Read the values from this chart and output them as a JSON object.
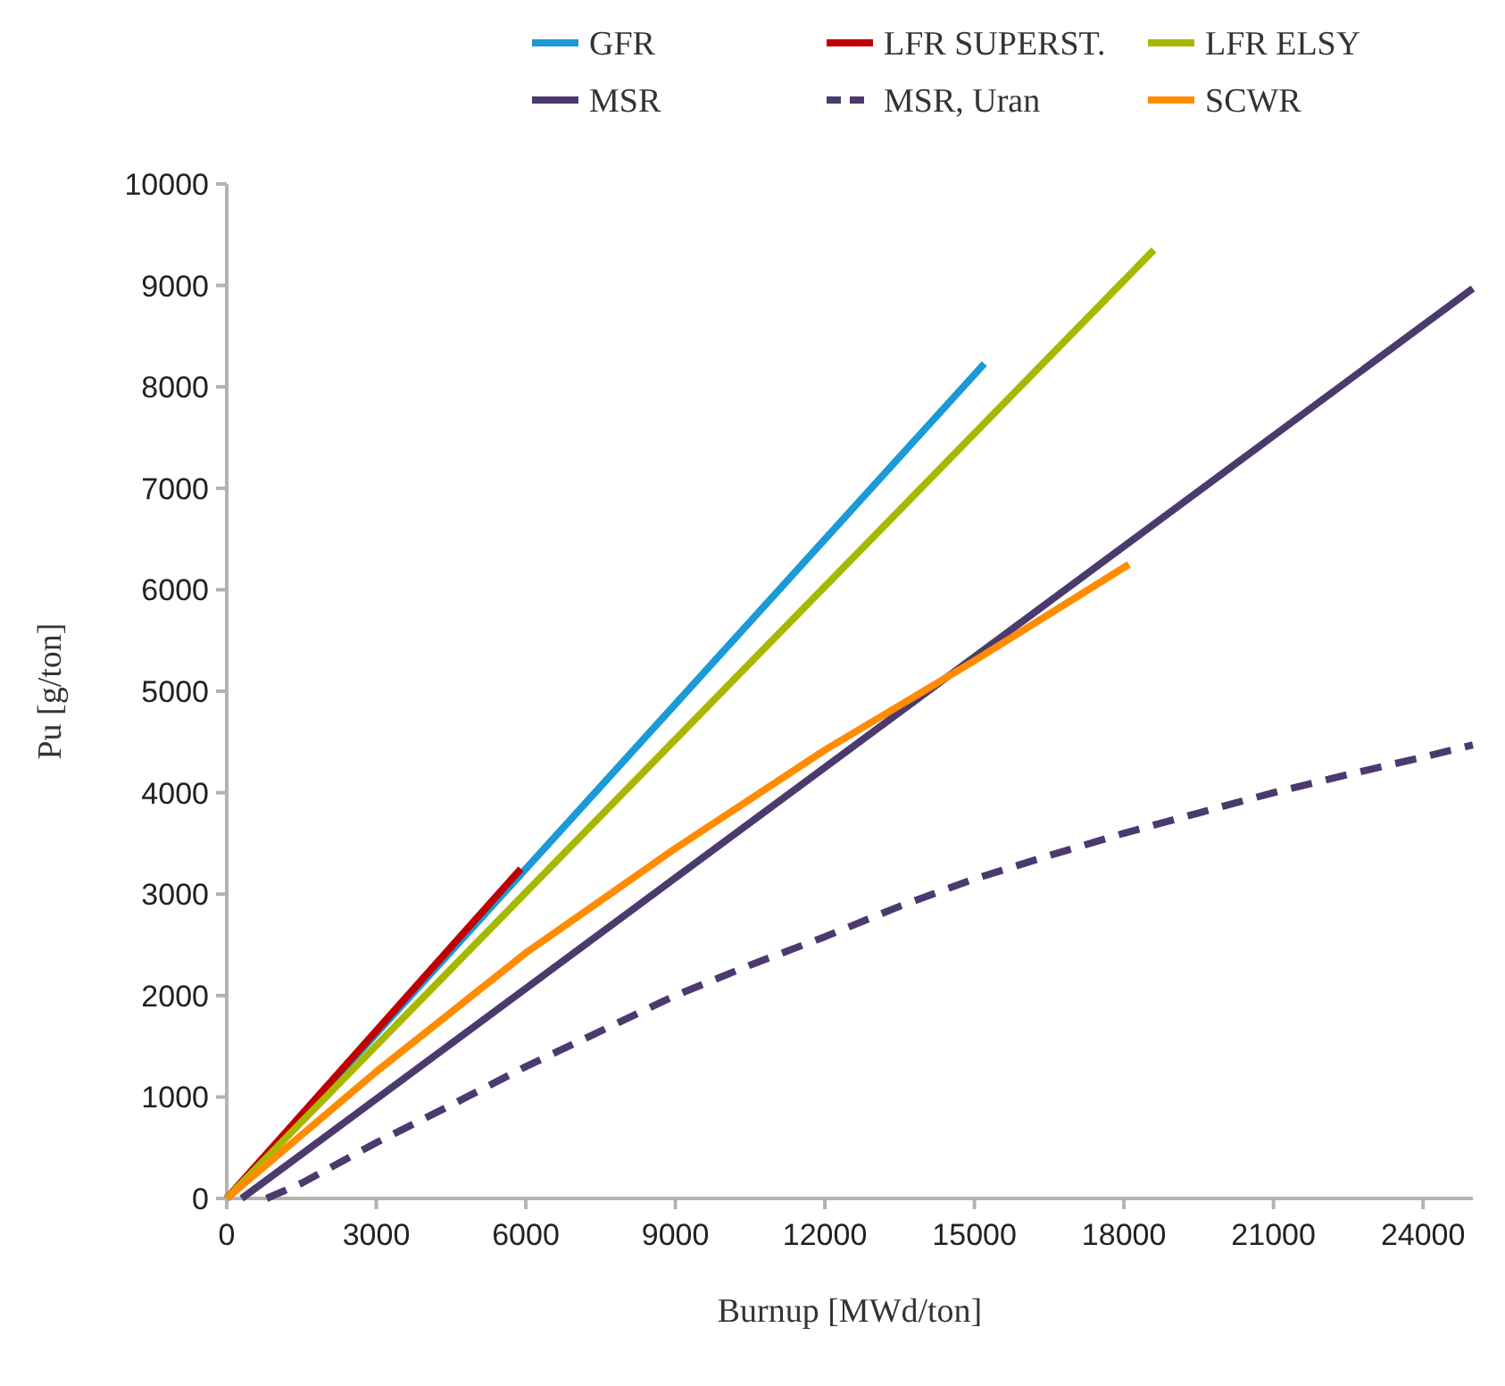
{
  "chart_data": {
    "type": "line",
    "xlabel": "Burnup [MWd/ton]",
    "ylabel": "Pu [g/ton]",
    "xlim": [
      0,
      25000
    ],
    "xticks": [
      0,
      3000,
      6000,
      9000,
      12000,
      15000,
      18000,
      21000,
      24000
    ],
    "ylim": [
      0,
      10000
    ],
    "yticks": [
      0,
      1000,
      2000,
      3000,
      4000,
      5000,
      6000,
      7000,
      8000,
      9000,
      10000
    ],
    "grid": false,
    "legend": "top",
    "marker": "none",
    "series": [
      {
        "name": "GFR",
        "color": "#1a9ad6",
        "x": [
          0,
          15200
        ],
        "values": [
          0,
          8230
        ]
      },
      {
        "name": "LFR SUPERST.",
        "color": "#c00000",
        "x": [
          0,
          5900
        ],
        "values": [
          0,
          3250
        ]
      },
      {
        "name": "LFR ELSY",
        "color": "#a8b800",
        "x": [
          0,
          18600
        ],
        "values": [
          0,
          9350
        ]
      },
      {
        "name": "MSR",
        "color": "#4b3a6e",
        "x": [
          300,
          25000
        ],
        "values": [
          0,
          8970
        ]
      },
      {
        "name": "MSR, Uran",
        "color": "#4b3a6e",
        "line_style": "dashed",
        "x": [
          800,
          1500,
          3000,
          4500,
          6000,
          7500,
          9000,
          10500,
          12000,
          13500,
          15000,
          16500,
          18000,
          19500,
          21000,
          22500,
          24000,
          25000
        ],
        "values": [
          0,
          150,
          550,
          920,
          1300,
          1650,
          2000,
          2300,
          2580,
          2880,
          3150,
          3380,
          3600,
          3800,
          4000,
          4180,
          4350,
          4470
        ]
      },
      {
        "name": "SCWR",
        "color": "#ff8c00",
        "x": [
          0,
          3000,
          6000,
          9000,
          12000,
          15000,
          18100
        ],
        "values": [
          0,
          1250,
          2420,
          3450,
          4420,
          5300,
          6250
        ]
      }
    ]
  }
}
